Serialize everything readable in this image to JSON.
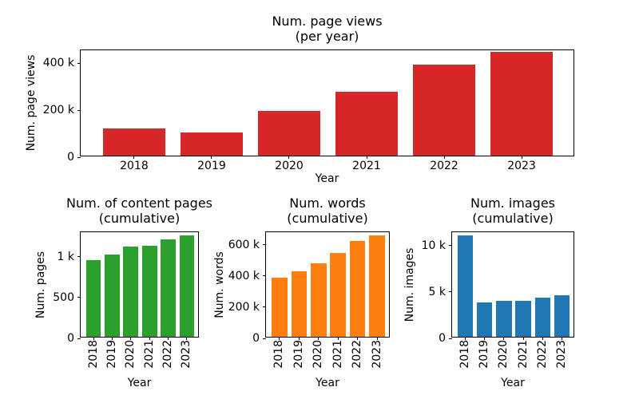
{
  "figure": {
    "background": "#ffffff",
    "text_color": "#000000"
  },
  "chart_data": [
    {
      "type": "bar",
      "title": "Num. page views\n(per year)",
      "xlabel": "Year",
      "ylabel": "Num. page views",
      "color": "#d62728",
      "categories": [
        "2018",
        "2019",
        "2020",
        "2021",
        "2022",
        "2023"
      ],
      "values": [
        115000,
        100000,
        190000,
        270000,
        386000,
        442000
      ],
      "ylim": [
        0,
        455000
      ],
      "yticks": [
        {
          "value": 0,
          "label": "0"
        },
        {
          "value": 200000,
          "label": "200 k"
        },
        {
          "value": 400000,
          "label": "400 k"
        }
      ],
      "xtick_rotation": 0,
      "grid": false,
      "legend": null
    },
    {
      "type": "bar",
      "title": "Num. of content pages\n(cumulative)",
      "xlabel": "Year",
      "ylabel": "Num. pages",
      "color": "#2ca02c",
      "categories": [
        "2018",
        "2019",
        "2020",
        "2021",
        "2022",
        "2023"
      ],
      "values": [
        940,
        1010,
        1100,
        1115,
        1190,
        1240
      ],
      "ylim": [
        0,
        1300
      ],
      "yticks": [
        {
          "value": 0,
          "label": "0"
        },
        {
          "value": 500,
          "label": "500"
        },
        {
          "value": 1000,
          "label": "1 k"
        }
      ],
      "xtick_rotation": 90,
      "grid": false,
      "legend": null
    },
    {
      "type": "bar",
      "title": "Num. words\n(cumulative)",
      "xlabel": "Year",
      "ylabel": "Num. words",
      "color": "#ff7f0e",
      "categories": [
        "2018",
        "2019",
        "2020",
        "2021",
        "2022",
        "2023"
      ],
      "values": [
        380000,
        420000,
        470000,
        540000,
        615000,
        650000
      ],
      "ylim": [
        0,
        682000
      ],
      "yticks": [
        {
          "value": 0,
          "label": "0"
        },
        {
          "value": 200000,
          "label": "200 k"
        },
        {
          "value": 400000,
          "label": "400 k"
        },
        {
          "value": 600000,
          "label": "600 k"
        }
      ],
      "xtick_rotation": 90,
      "grid": false,
      "legend": null
    },
    {
      "type": "bar",
      "title": "Num. images\n(cumulative)",
      "xlabel": "Year",
      "ylabel": "Num. images",
      "color": "#1f77b4",
      "categories": [
        "2018",
        "2019",
        "2020",
        "2021",
        "2022",
        "2023"
      ],
      "values": [
        10900,
        3700,
        3900,
        3900,
        4200,
        4500
      ],
      "ylim": [
        0,
        11450
      ],
      "yticks": [
        {
          "value": 0,
          "label": "0"
        },
        {
          "value": 5000,
          "label": "5 k"
        },
        {
          "value": 10000,
          "label": "10 k"
        }
      ],
      "xtick_rotation": 90,
      "grid": false,
      "legend": null
    }
  ]
}
